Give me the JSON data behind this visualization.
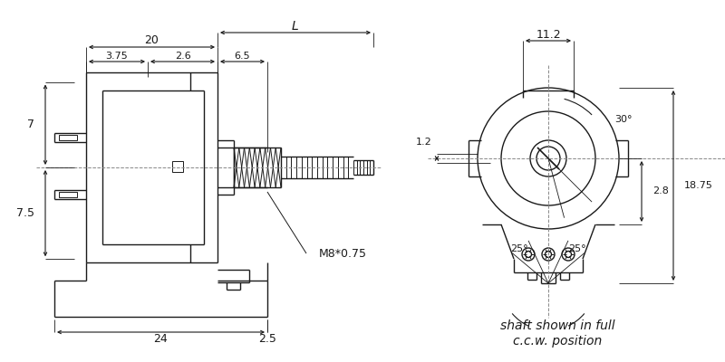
{
  "bg_color": "#ffffff",
  "lc": "#1a1a1a",
  "dc": "#1a1a1a",
  "cc": "#888888",
  "fig_w": 8.0,
  "fig_h": 4.0,
  "dpi": 100,
  "annotations": {
    "dim_20": "20",
    "dim_L": "L",
    "dim_3_75": "3.75",
    "dim_2_6": "2.6",
    "dim_6_5": "6.5",
    "dim_7": "7",
    "dim_7_5": "7.5",
    "dim_24": "24",
    "dim_2_5": "2.5",
    "dim_M8": "M8*0.75",
    "dim_11_2": "11.2",
    "dim_30": "30°",
    "dim_1_2": "1.2",
    "dim_2_8": "2.8",
    "dim_18_75": "18.75",
    "dim_25L": "25°",
    "dim_25R": "25°",
    "cap1": "shaft shown in full",
    "cap2": "c.c.w. position"
  }
}
